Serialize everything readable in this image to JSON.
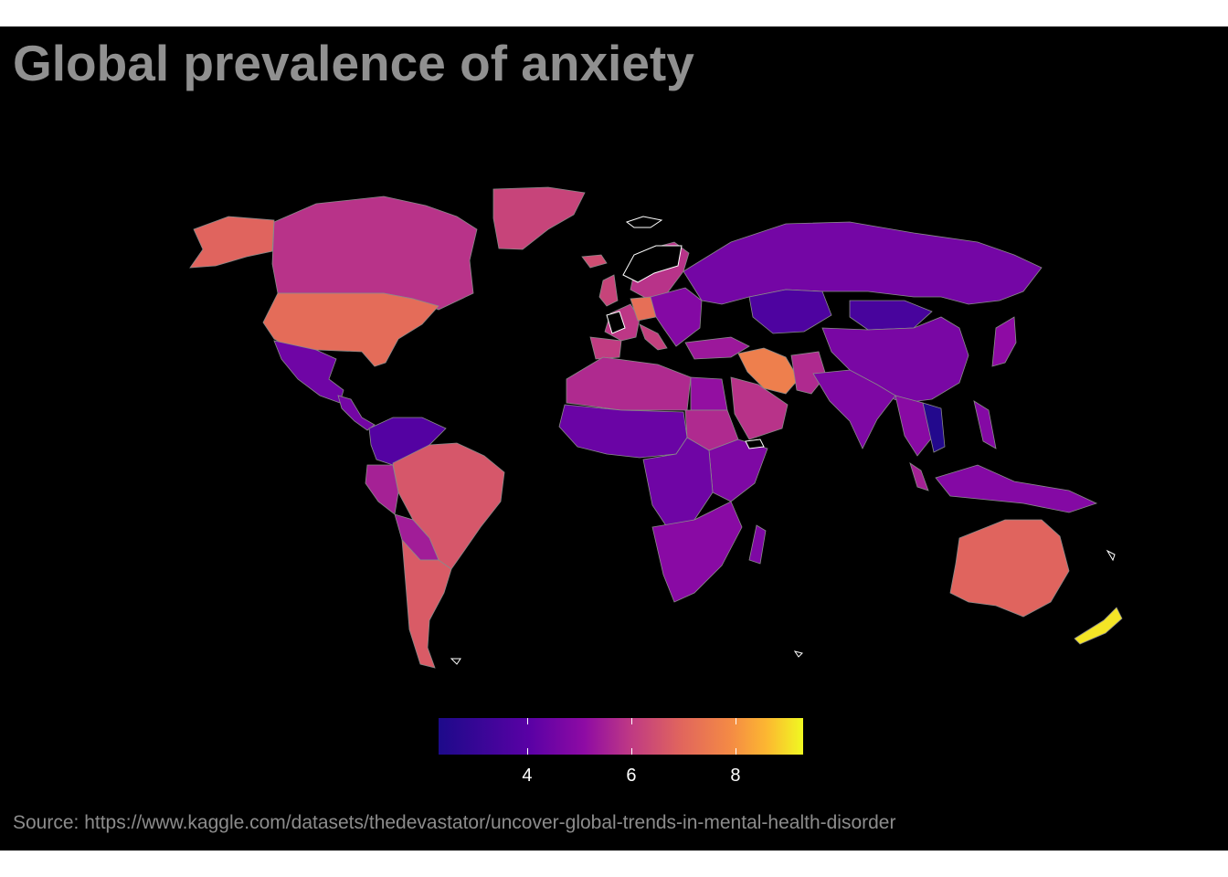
{
  "title": "Global prevalence of anxiety",
  "source": "Source: https://www.kaggle.com/datasets/thedevastator/uncover-global-trends-in-mental-health-disorder",
  "colors": {
    "background": "#000000",
    "no_data": "#000000",
    "border": "#8a8a8a",
    "no_data_border": "#ffffff",
    "title": "#909090",
    "source": "#8c8c8c",
    "scale": [
      "#1d0a8a",
      "#5a01a5",
      "#8e0ba4",
      "#bd3786",
      "#e0645e",
      "#f48a45",
      "#fcb731",
      "#f0f921"
    ]
  },
  "legend": {
    "min": 2.3,
    "max": 9.3,
    "ticks": [
      {
        "value": 4,
        "label": "4"
      },
      {
        "value": 6,
        "label": "6"
      },
      {
        "value": 8,
        "label": "8"
      }
    ]
  },
  "regions": [
    {
      "name": "Greenland",
      "value": 5.6
    },
    {
      "name": "Canada",
      "value": 5.2
    },
    {
      "name": "Alaska",
      "value": 6.3
    },
    {
      "name": "United States",
      "value": 6.5
    },
    {
      "name": "Mexico",
      "value": 3.7
    },
    {
      "name": "Central America",
      "value": 3.8
    },
    {
      "name": "Venezuela / Colombia",
      "value": 3.2
    },
    {
      "name": "Brazil",
      "value": 6.0
    },
    {
      "name": "Peru",
      "value": 4.8
    },
    {
      "name": "Bolivia / Paraguay",
      "value": 4.7
    },
    {
      "name": "Argentina / Chile",
      "value": 6.1
    },
    {
      "name": "Iceland",
      "value": 5.8
    },
    {
      "name": "Scandinavia",
      "value": 5.2
    },
    {
      "name": "United Kingdom",
      "value": 5.6
    },
    {
      "name": "Western Europe",
      "value": 5.3
    },
    {
      "name": "Germany",
      "value": 6.6
    },
    {
      "name": "Iberia",
      "value": 5.4
    },
    {
      "name": "Italy",
      "value": 5.5
    },
    {
      "name": "Eastern Europe",
      "value": 4.1
    },
    {
      "name": "Russia",
      "value": 3.8
    },
    {
      "name": "Kazakhstan",
      "value": 3.1
    },
    {
      "name": "Mongolia",
      "value": 3.0
    },
    {
      "name": "China",
      "value": 3.9
    },
    {
      "name": "Turkey",
      "value": 4.6
    },
    {
      "name": "Iran",
      "value": 7.0
    },
    {
      "name": "Afghanistan / Pakistan",
      "value": 5.0
    },
    {
      "name": "Arabian Peninsula",
      "value": 5.2
    },
    {
      "name": "North Africa",
      "value": 5.0
    },
    {
      "name": "Egypt",
      "value": 4.4
    },
    {
      "name": "Sudan",
      "value": 5.0
    },
    {
      "name": "West Africa",
      "value": 3.6
    },
    {
      "name": "East Africa",
      "value": 4.0
    },
    {
      "name": "Central Africa",
      "value": 3.7
    },
    {
      "name": "Southern Africa",
      "value": 4.2
    },
    {
      "name": "Madagascar",
      "value": 4.0
    },
    {
      "name": "India",
      "value": 4.0
    },
    {
      "name": "Southeast Asia",
      "value": 4.2
    },
    {
      "name": "Vietnam",
      "value": 2.4
    },
    {
      "name": "Malaysia",
      "value": 4.8
    },
    {
      "name": "Indonesia",
      "value": 4.1
    },
    {
      "name": "Philippines",
      "value": 4.1
    },
    {
      "name": "Japan",
      "value": 4.3
    },
    {
      "name": "Australia",
      "value": 6.3
    },
    {
      "name": "New Zealand",
      "value": 9.0
    }
  ]
}
